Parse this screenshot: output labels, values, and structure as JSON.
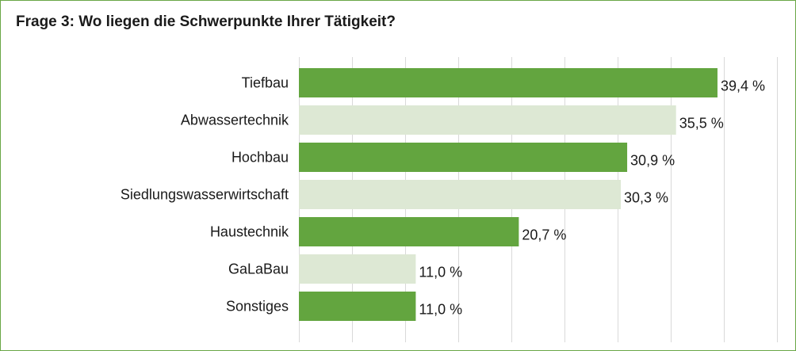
{
  "title": "Frage 3: Wo liegen die Schwerpunkte Ihrer Tätigkeit?",
  "colors": {
    "border": "#6aa646",
    "bar_dark": "#63a53f",
    "bar_light": "#dde8d4",
    "grid": "#d9d9d9",
    "text": "#1a1a1a"
  },
  "chart_data": {
    "type": "bar",
    "orientation": "horizontal",
    "title": "Frage 3: Wo liegen die Schwerpunkte Ihrer Tätigkeit?",
    "xlabel": "",
    "ylabel": "",
    "xlim": [
      0,
      45
    ],
    "grid": true,
    "value_suffix": " %",
    "categories": [
      "Tiefbau",
      "Abwassertechnik",
      "Hochbau",
      "Siedlungswasserwirtschaft",
      "Haustechnik",
      "GaLaBau",
      "Sonstiges"
    ],
    "values": [
      39.4,
      35.5,
      30.9,
      30.3,
      20.7,
      11.0,
      11.0
    ],
    "value_labels": [
      "39,4 %",
      "35,5 %",
      "30,9 %",
      "30,3 %",
      "20,7 %",
      "11,0 %",
      "11,0 %"
    ],
    "bar_colors": [
      "#63a53f",
      "#dde8d4",
      "#63a53f",
      "#dde8d4",
      "#63a53f",
      "#dde8d4",
      "#63a53f"
    ]
  }
}
